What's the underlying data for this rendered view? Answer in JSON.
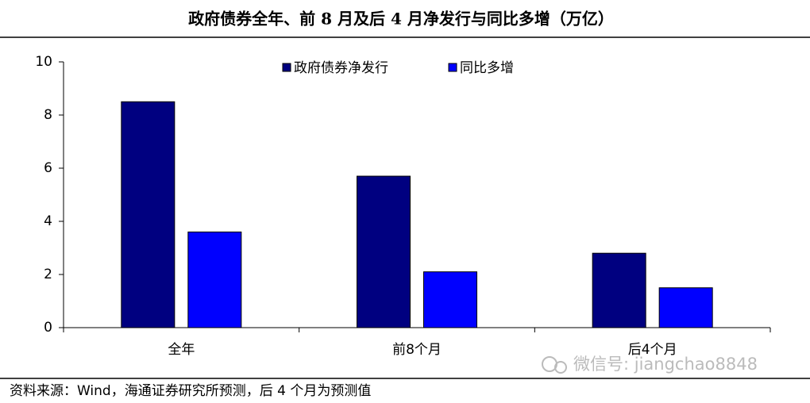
{
  "chart_data": {
    "type": "bar",
    "title": "政府债券全年、前 8 月及后 4 月净发行与同比多增（万亿）",
    "categories": [
      "全年",
      "前8个月",
      "后4个月"
    ],
    "series": [
      {
        "name": "政府债券净发行",
        "color": "#000080",
        "values": [
          8.5,
          5.7,
          2.8
        ]
      },
      {
        "name": "同比多增",
        "color": "#0000ff",
        "values": [
          3.6,
          2.1,
          1.5
        ]
      }
    ],
    "ylim": [
      0,
      10
    ],
    "yticks": [
      0,
      2,
      4,
      6,
      8,
      10
    ],
    "grid": false,
    "legend": "top",
    "source": "资料来源：Wind，海通证券研究所预测，后 4 个月为预测值",
    "watermark": "微信号: jiangchao8848"
  }
}
